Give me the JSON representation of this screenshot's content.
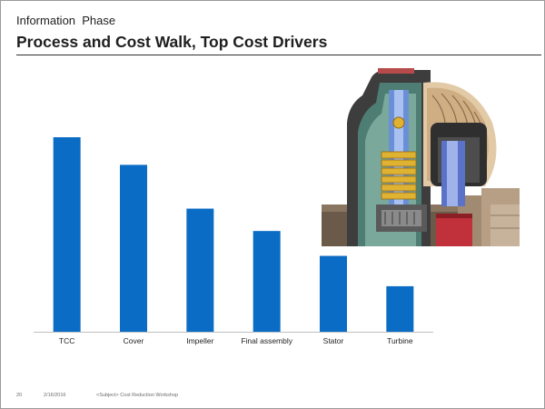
{
  "slide": {
    "kicker": "Information  Phase",
    "title": "Process and Cost Walk, Top Cost Drivers"
  },
  "colors": {
    "bar": "#0a6cc4",
    "axis": "#bfbfbf",
    "text": "#1f1f1f"
  },
  "chart_data": {
    "type": "bar",
    "title": "",
    "xlabel": "",
    "ylabel": "",
    "categories": [
      "TCC",
      "Cover",
      "Impeller",
      "Final assembly",
      "Stator",
      "Turbine"
    ],
    "values": [
      100,
      85.8,
      63.3,
      51.8,
      39.0,
      23.4
    ],
    "ylim": [
      0,
      100
    ],
    "grid": false,
    "legend": "none"
  },
  "image": {
    "icon": "torque-converter-cutaway-image"
  },
  "footer": {
    "page": "20",
    "date": "2/16/2016",
    "subject": "<Subject> Cost Reduction Workshop"
  }
}
